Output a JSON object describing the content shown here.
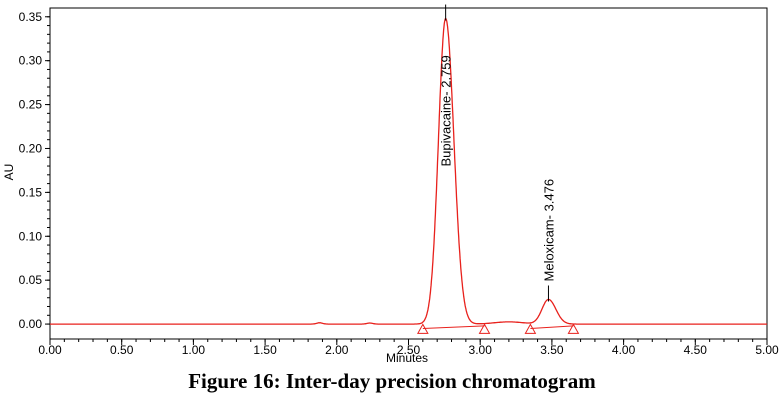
{
  "chart_data": {
    "type": "line",
    "title": "",
    "xlabel": "Minutes",
    "ylabel": "AU",
    "xlim": [
      0.0,
      5.0
    ],
    "ylim": [
      -0.017,
      0.36
    ],
    "x_ticks": [
      0.0,
      0.5,
      1.0,
      1.5,
      2.0,
      2.5,
      3.0,
      3.5,
      4.0,
      4.5,
      5.0
    ],
    "x_tick_labels": [
      "0.00",
      "0.50",
      "1.00",
      "1.50",
      "2.00",
      "2.50",
      "3.00",
      "3.50",
      "4.00",
      "4.50",
      "5.00"
    ],
    "y_ticks": [
      0.0,
      0.05,
      0.1,
      0.15,
      0.2,
      0.25,
      0.3,
      0.35
    ],
    "y_tick_labels": [
      "0.00",
      "0.05",
      "0.10",
      "0.15",
      "0.20",
      "0.25",
      "0.30",
      "0.35"
    ],
    "grid": false,
    "series": [
      {
        "name": "chromatogram",
        "color": "#e8211c",
        "baseline": 0.0,
        "peaks": [
          {
            "label": "Bupivacaine- 2.759",
            "rt": 2.759,
            "height": 0.348,
            "width": 0.05
          },
          {
            "label": "Meloxicam- 3.476",
            "rt": 3.476,
            "height": 0.028,
            "width": 0.045
          }
        ],
        "integration_markers_x": [
          2.6,
          3.03,
          3.35,
          3.65
        ]
      }
    ]
  },
  "caption": "Figure 16: Inter-day precision chromatogram"
}
